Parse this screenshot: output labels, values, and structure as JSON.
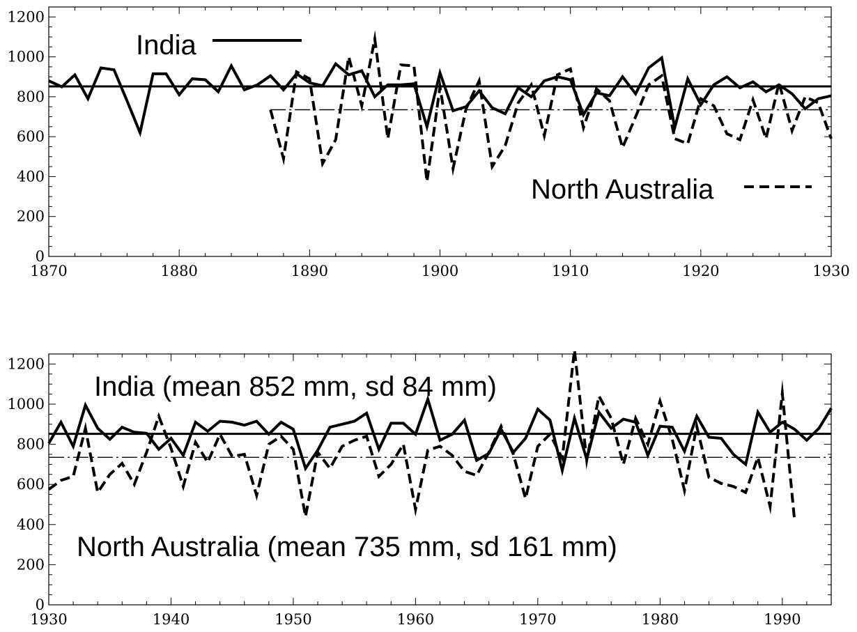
{
  "chart_data": [
    {
      "type": "line",
      "xlim": [
        1870,
        1930
      ],
      "ylim": [
        0,
        1250
      ],
      "x_ticks": [
        1870,
        1880,
        1890,
        1900,
        1910,
        1920,
        1930
      ],
      "y_ticks": [
        0,
        200,
        400,
        600,
        800,
        1000,
        1200
      ],
      "legend": [
        {
          "label": "India",
          "style": "solid"
        },
        {
          "label": "North Australia",
          "style": "dashed"
        }
      ],
      "mean_lines": [
        {
          "series": "India",
          "value": 852,
          "style": "solid"
        },
        {
          "series": "North Australia",
          "value": 735,
          "style": "dashdot"
        }
      ],
      "series": [
        {
          "name": "India",
          "style": "solid",
          "x": [
            1870,
            1871,
            1872,
            1873,
            1874,
            1875,
            1876,
            1877,
            1878,
            1879,
            1880,
            1881,
            1882,
            1883,
            1884,
            1885,
            1886,
            1887,
            1888,
            1889,
            1890,
            1891,
            1892,
            1893,
            1894,
            1895,
            1896,
            1897,
            1898,
            1899,
            1900,
            1901,
            1902,
            1903,
            1904,
            1905,
            1906,
            1907,
            1908,
            1909,
            1910,
            1911,
            1912,
            1913,
            1914,
            1915,
            1916,
            1917,
            1918,
            1919,
            1920,
            1921,
            1922,
            1923,
            1924,
            1925,
            1926,
            1927,
            1928,
            1929,
            1930
          ],
          "y": [
            880,
            850,
            910,
            790,
            945,
            935,
            780,
            620,
            915,
            915,
            810,
            890,
            885,
            825,
            955,
            835,
            860,
            905,
            835,
            915,
            870,
            855,
            965,
            910,
            930,
            800,
            860,
            860,
            865,
            650,
            920,
            730,
            750,
            830,
            745,
            715,
            845,
            800,
            880,
            900,
            885,
            710,
            820,
            805,
            900,
            815,
            945,
            995,
            645,
            890,
            760,
            860,
            900,
            845,
            875,
            825,
            860,
            815,
            740,
            790,
            805
          ]
        },
        {
          "name": "North Australia",
          "style": "dashed",
          "x": [
            1887,
            1888,
            1889,
            1890,
            1891,
            1892,
            1893,
            1894,
            1895,
            1896,
            1897,
            1898,
            1899,
            1900,
            1901,
            1902,
            1903,
            1904,
            1905,
            1906,
            1907,
            1908,
            1909,
            1910,
            1911,
            1912,
            1913,
            1914,
            1915,
            1916,
            1917,
            1918,
            1919,
            1920,
            1921,
            1922,
            1923,
            1924,
            1925,
            1926,
            1927,
            1928,
            1929,
            1930
          ],
          "y": [
            735,
            490,
            925,
            890,
            465,
            585,
            1000,
            755,
            1090,
            590,
            960,
            955,
            375,
            850,
            440,
            740,
            880,
            450,
            555,
            770,
            860,
            605,
            910,
            940,
            645,
            840,
            780,
            545,
            700,
            860,
            905,
            590,
            565,
            790,
            755,
            615,
            585,
            785,
            590,
            870,
            630,
            800,
            770,
            590
          ]
        }
      ]
    },
    {
      "type": "line",
      "xlim": [
        1930,
        1994
      ],
      "ylim": [
        0,
        1250
      ],
      "x_ticks": [
        1930,
        1940,
        1950,
        1960,
        1970,
        1980,
        1990
      ],
      "y_ticks": [
        0,
        200,
        400,
        600,
        800,
        1000,
        1200
      ],
      "annotations": [
        "India (mean 852 mm, sd 84 mm)",
        "North Australia (mean 735 mm, sd 161 mm)"
      ],
      "mean_lines": [
        {
          "series": "India",
          "value": 852,
          "style": "solid"
        },
        {
          "series": "North Australia",
          "value": 735,
          "style": "dashdot"
        }
      ],
      "series": [
        {
          "name": "India",
          "style": "solid",
          "x": [
            1930,
            1931,
            1932,
            1933,
            1934,
            1935,
            1936,
            1937,
            1938,
            1939,
            1940,
            1941,
            1942,
            1943,
            1944,
            1945,
            1946,
            1947,
            1948,
            1949,
            1950,
            1951,
            1952,
            1953,
            1954,
            1955,
            1956,
            1957,
            1958,
            1959,
            1960,
            1961,
            1962,
            1963,
            1964,
            1965,
            1966,
            1967,
            1968,
            1969,
            1970,
            1971,
            1972,
            1973,
            1974,
            1975,
            1976,
            1977,
            1978,
            1979,
            1980,
            1981,
            1982,
            1983,
            1984,
            1985,
            1986,
            1987,
            1988,
            1989,
            1990,
            1991,
            1992,
            1993,
            1994
          ],
          "y": [
            805,
            910,
            790,
            995,
            880,
            825,
            885,
            860,
            855,
            775,
            830,
            745,
            910,
            865,
            915,
            910,
            895,
            915,
            850,
            910,
            875,
            680,
            770,
            885,
            900,
            915,
            955,
            775,
            905,
            905,
            850,
            1025,
            820,
            850,
            920,
            720,
            755,
            875,
            760,
            830,
            975,
            920,
            670,
            930,
            725,
            960,
            880,
            925,
            910,
            745,
            890,
            885,
            765,
            940,
            835,
            830,
            750,
            700,
            960,
            860,
            910,
            875,
            820,
            880,
            980
          ]
        },
        {
          "name": "North Australia",
          "style": "dashed",
          "x": [
            1930,
            1931,
            1932,
            1933,
            1934,
            1935,
            1936,
            1937,
            1938,
            1939,
            1940,
            1941,
            1942,
            1943,
            1944,
            1945,
            1946,
            1947,
            1948,
            1949,
            1950,
            1951,
            1952,
            1953,
            1954,
            1955,
            1956,
            1957,
            1958,
            1959,
            1960,
            1961,
            1962,
            1963,
            1964,
            1965,
            1966,
            1967,
            1968,
            1969,
            1970,
            1971,
            1972,
            1973,
            1974,
            1975,
            1976,
            1977,
            1978,
            1979,
            1980,
            1981,
            1982,
            1983,
            1984,
            1985,
            1986,
            1987,
            1988,
            1989,
            1990,
            1991
          ],
          "y": [
            575,
            620,
            640,
            880,
            560,
            650,
            705,
            600,
            760,
            940,
            780,
            590,
            810,
            710,
            850,
            740,
            750,
            545,
            800,
            840,
            775,
            440,
            760,
            680,
            790,
            820,
            840,
            640,
            700,
            800,
            475,
            770,
            790,
            745,
            665,
            645,
            760,
            890,
            750,
            530,
            790,
            850,
            730,
            1270,
            720,
            1040,
            930,
            700,
            930,
            800,
            1015,
            825,
            570,
            890,
            635,
            605,
            590,
            560,
            735,
            490,
            1055,
            420
          ]
        }
      ]
    }
  ]
}
